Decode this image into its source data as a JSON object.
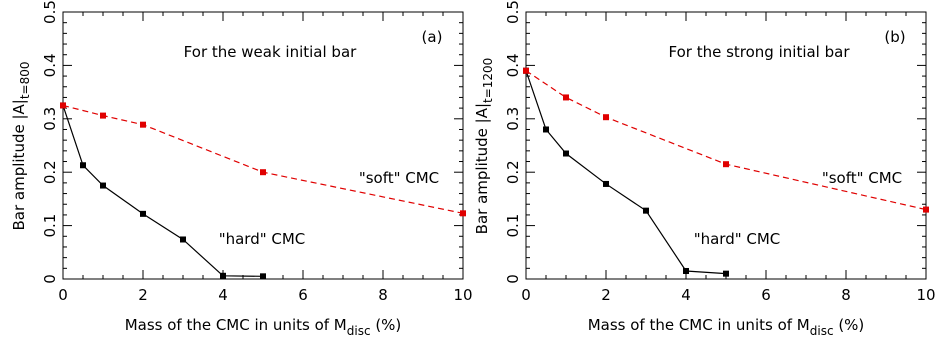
{
  "chart_data": [
    {
      "type": "line",
      "panel_label": "(a)",
      "annotation": "For the weak initial bar",
      "xlabel_main": "Mass of the CMC in units of M",
      "xlabel_sub": "disc",
      "xlabel_suffix": " (%)",
      "ylabel_main": "Bar amplitude |A|",
      "ylabel_sub": "t=800",
      "xlim": [
        0,
        10
      ],
      "ylim": [
        0,
        0.5
      ],
      "xticks": [
        "0",
        "2",
        "4",
        "6",
        "8",
        "10"
      ],
      "yticks": [
        "0",
        "0.1",
        "0.2",
        "0.3",
        "0.4",
        "0.5"
      ],
      "series": [
        {
          "name": "\"hard\" CMC",
          "color": "#000000",
          "dash": "solid",
          "x": [
            0,
            0.5,
            1,
            2,
            3,
            4,
            5
          ],
          "y": [
            0.325,
            0.213,
            0.175,
            0.122,
            0.074,
            0.006,
            0.005
          ]
        },
        {
          "name": "\"soft\" CMC",
          "color": "#e00000",
          "dash": "dashed",
          "x": [
            0,
            1,
            2,
            5,
            10
          ],
          "y": [
            0.325,
            0.306,
            0.289,
            0.2,
            0.123
          ]
        }
      ]
    },
    {
      "type": "line",
      "panel_label": "(b)",
      "annotation": "For the strong initial bar",
      "xlabel_main": "Mass of the CMC in units of M",
      "xlabel_sub": "disc",
      "xlabel_suffix": " (%)",
      "ylabel_main": "Bar amplitude |A|",
      "ylabel_sub": "t=1200",
      "xlim": [
        0,
        10
      ],
      "ylim": [
        0,
        0.5
      ],
      "xticks": [
        "0",
        "2",
        "4",
        "6",
        "8",
        "10"
      ],
      "yticks": [
        "0",
        "0.1",
        "0.2",
        "0.3",
        "0.4",
        "0.5"
      ],
      "series": [
        {
          "name": "\"hard\" CMC",
          "color": "#000000",
          "dash": "solid",
          "x": [
            0,
            0.5,
            1,
            2,
            3,
            4,
            5
          ],
          "y": [
            0.39,
            0.28,
            0.235,
            0.178,
            0.128,
            0.015,
            0.01
          ]
        },
        {
          "name": "\"soft\" CMC",
          "color": "#e00000",
          "dash": "dashed",
          "x": [
            0,
            1,
            2,
            5,
            10
          ],
          "y": [
            0.39,
            0.34,
            0.303,
            0.215,
            0.13
          ]
        }
      ]
    }
  ]
}
